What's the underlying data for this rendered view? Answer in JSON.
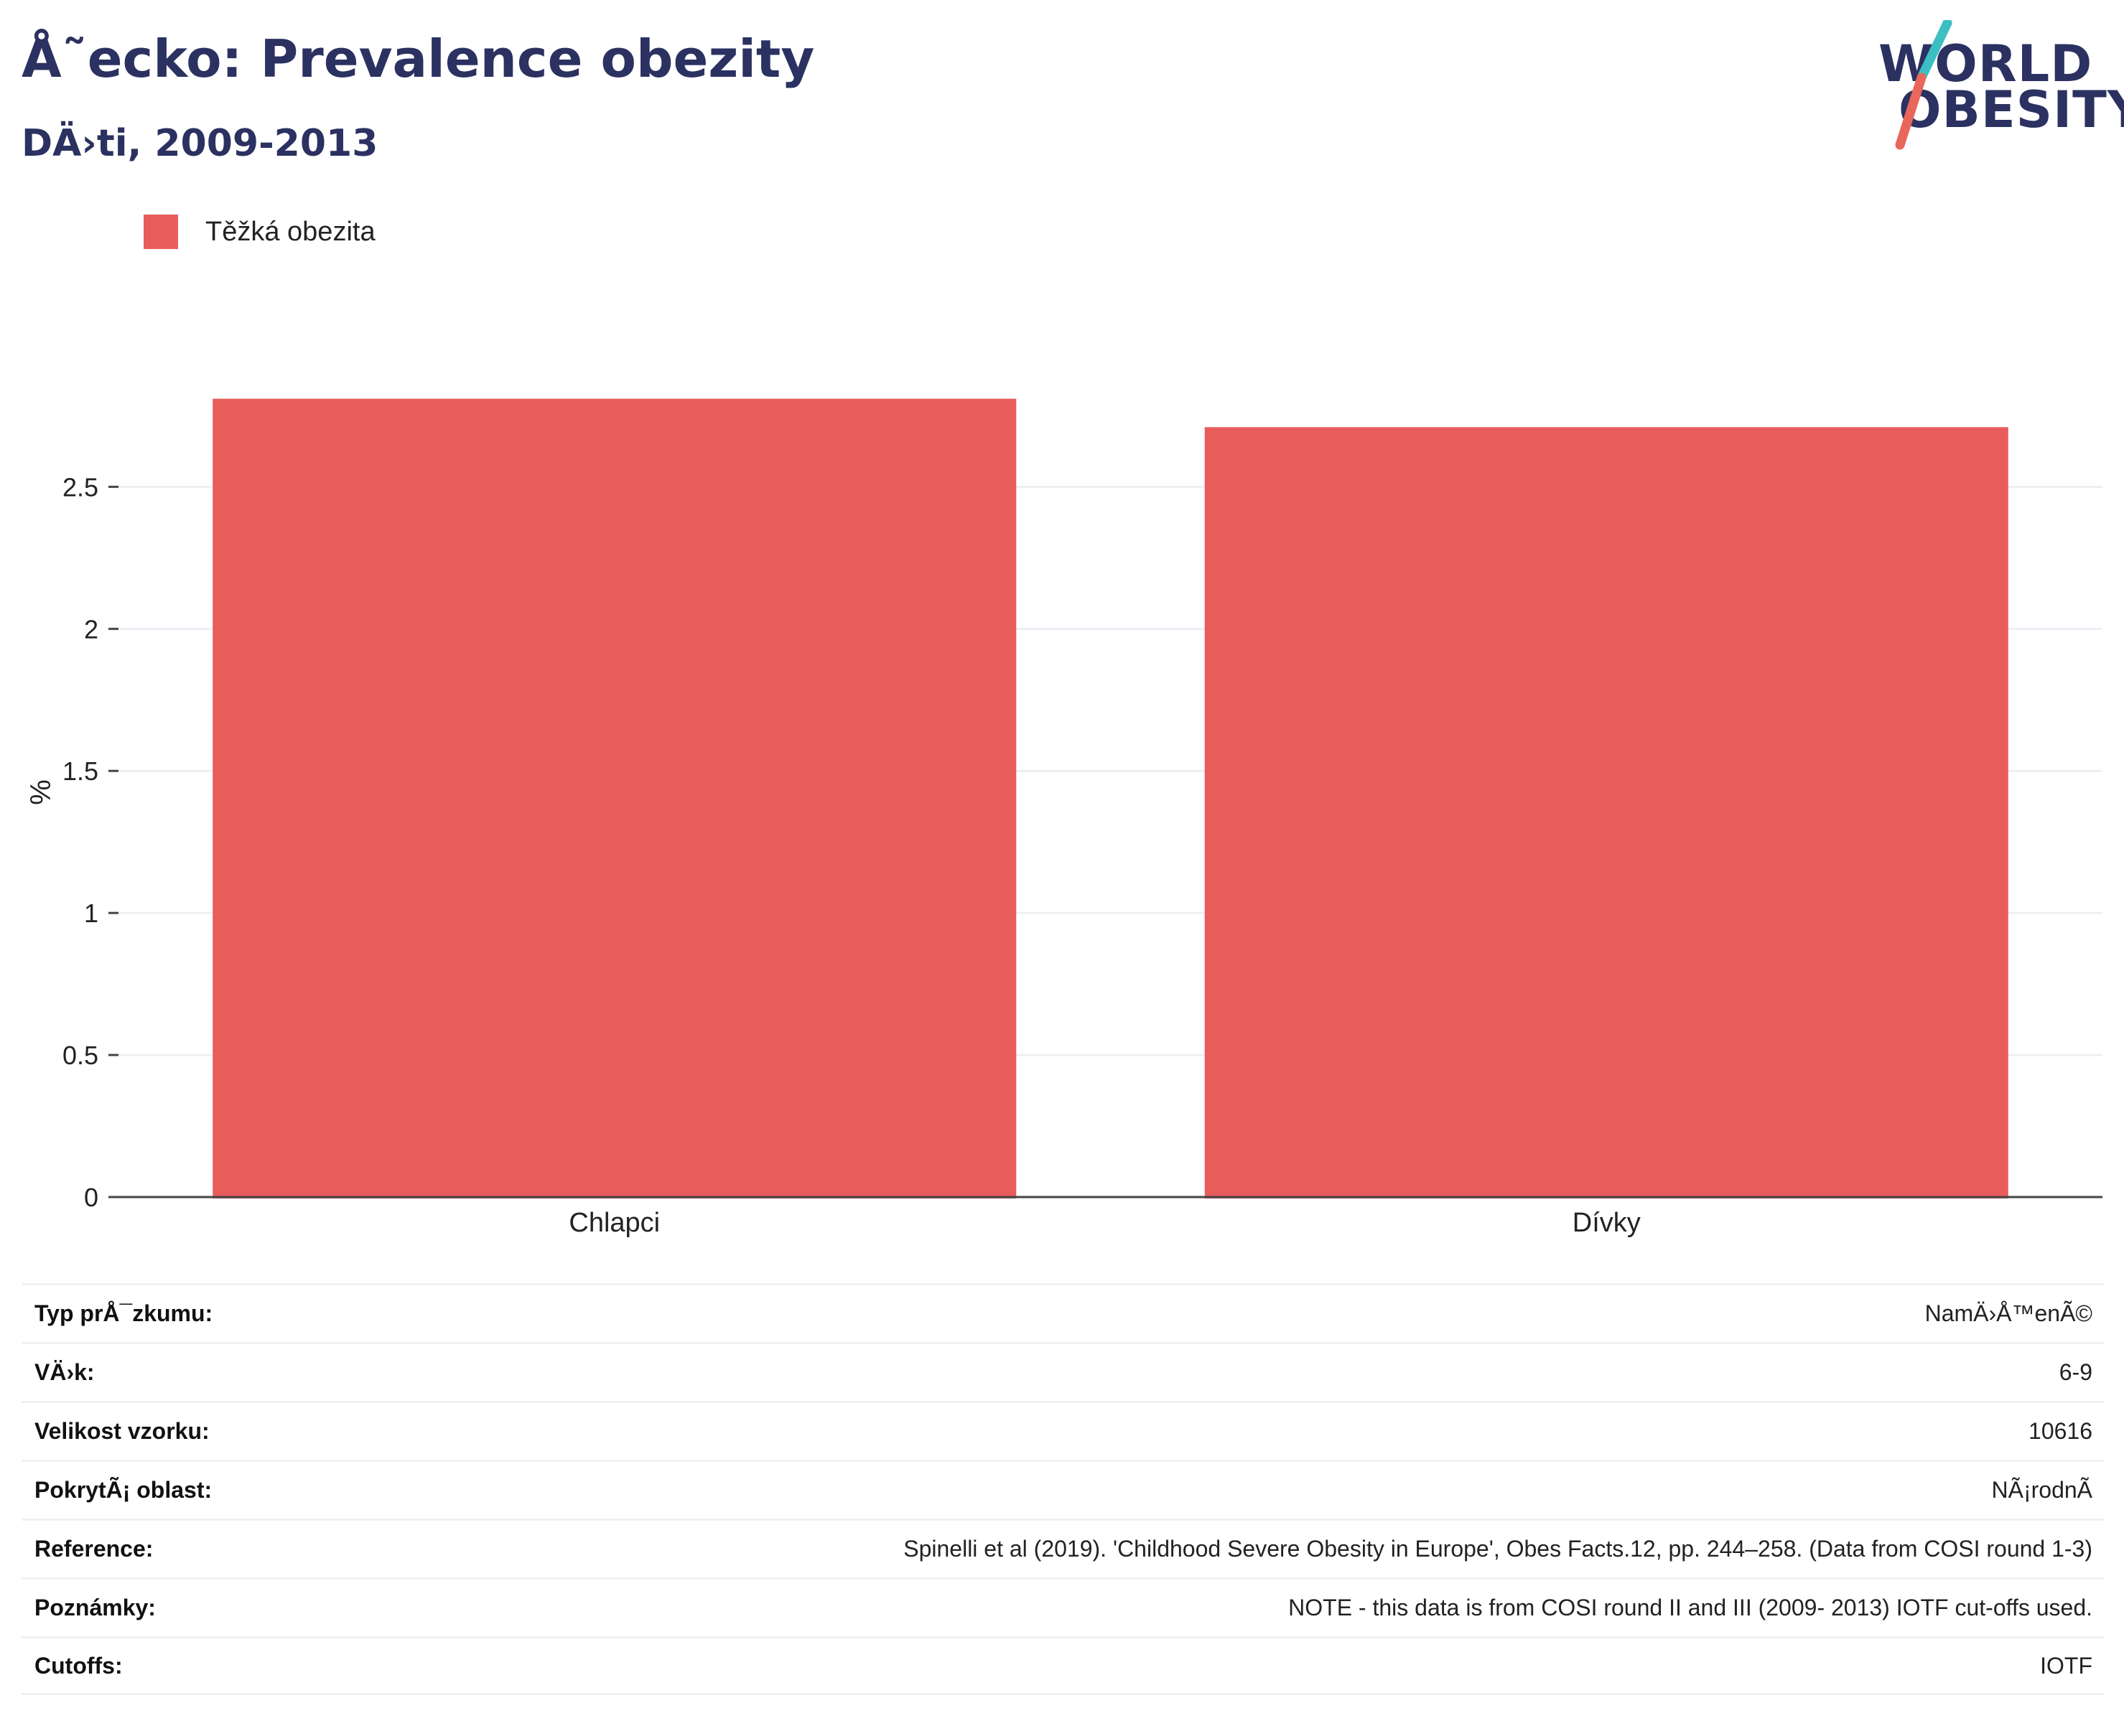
{
  "header": {
    "title": "Å˜ecko: Prevalence obezity",
    "subtitle": "DÄ›ti, 2009-2013"
  },
  "logo": {
    "line1": "WORLD",
    "line2": "OBESITY",
    "text_color": "#2b3160",
    "slash_colors": [
      "#3bbfc2",
      "#e8675a"
    ]
  },
  "legend": {
    "label": "Těžká obezita",
    "color": "#e95c5c"
  },
  "chart_data": {
    "type": "bar",
    "categories": [
      "Chlapci",
      "Dívky"
    ],
    "series": [
      {
        "name": "Těžká obezita",
        "values": [
          2.81,
          2.71
        ],
        "color": "#e95c5c"
      }
    ],
    "ylabel": "%",
    "xlabel": "",
    "ylim": [
      0,
      2.9
    ],
    "yticks": [
      0,
      0.5,
      1,
      1.5,
      2,
      2.5
    ],
    "ytick_labels": [
      "0",
      "0.5",
      "1",
      "1.5",
      "2",
      "2.5"
    ],
    "grid": true,
    "legend_position": "top-left"
  },
  "info": [
    {
      "label": "Typ prÅ¯zkumu:",
      "value": "NamÄ›Å™enÃ©"
    },
    {
      "label": "VÄ›k:",
      "value": "6-9"
    },
    {
      "label": "Velikost vzorku:",
      "value": "10616"
    },
    {
      "label": "PokrytÃ¡ oblast:",
      "value": "NÃ¡rodnÃ"
    },
    {
      "label": "Reference:",
      "value": "Spinelli et al (2019). 'Childhood Severe Obesity in Europe', Obes Facts.12, pp. 244–258. (Data from COSI round 1-3)"
    },
    {
      "label": "Poznámky:",
      "value": "NOTE - this data is from COSI round II and III (2009- 2013) IOTF cut-offs used."
    },
    {
      "label": "Cutoffs:",
      "value": "IOTF"
    }
  ]
}
